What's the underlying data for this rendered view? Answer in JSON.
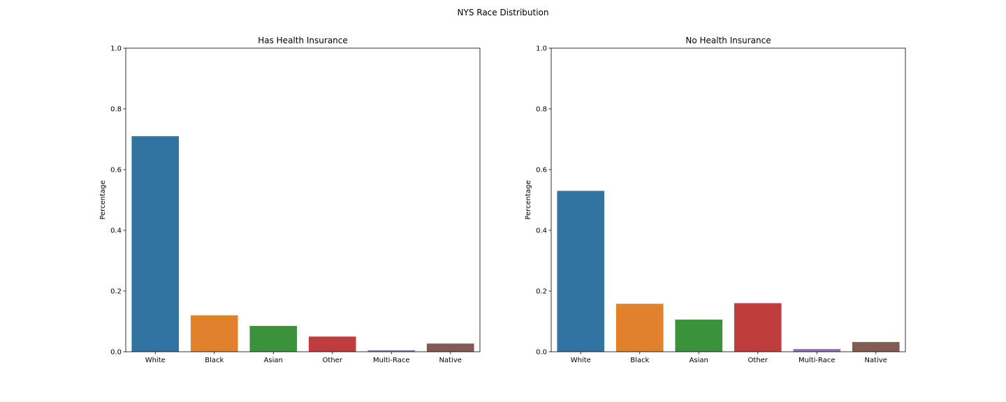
{
  "figure": {
    "suptitle": "NYS Race Distribution"
  },
  "colors": [
    "#3274a1",
    "#e1812c",
    "#3a923a",
    "#c03d3e",
    "#9372b2",
    "#845b53"
  ],
  "chart_data": [
    {
      "type": "bar",
      "title": "Has Health Insurance",
      "xlabel": "",
      "ylabel": "Percentage",
      "ylim": [
        0,
        1.0
      ],
      "yticks": [
        "0.0",
        "0.2",
        "0.4",
        "0.6",
        "0.8",
        "1.0"
      ],
      "categories": [
        "White",
        "Black",
        "Asian",
        "Other",
        "Multi-Race",
        "Native"
      ],
      "values": [
        0.71,
        0.12,
        0.085,
        0.05,
        0.005,
        0.027
      ],
      "grid": false
    },
    {
      "type": "bar",
      "title": "No Health Insurance",
      "xlabel": "",
      "ylabel": "Percentage",
      "ylim": [
        0,
        1.0
      ],
      "yticks": [
        "0.0",
        "0.2",
        "0.4",
        "0.6",
        "0.8",
        "1.0"
      ],
      "categories": [
        "White",
        "Black",
        "Asian",
        "Other",
        "Multi-Race",
        "Native"
      ],
      "values": [
        0.53,
        0.158,
        0.106,
        0.16,
        0.009,
        0.032
      ],
      "grid": false
    }
  ]
}
